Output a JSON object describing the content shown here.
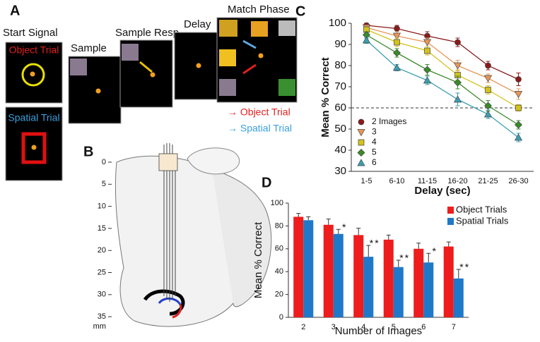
{
  "panels": {
    "a": {
      "label": "A",
      "start_signal": "Start Signal",
      "object_trial": "Object Trial",
      "spatial_trial": "Spatial Trial",
      "sample": "Sample",
      "sample_resp": "Sample Resp",
      "delay": "Delay",
      "match_phase": "Match Phase",
      "legend_object": "→ Object Trial",
      "legend_spatial": "→ Spatial Trial"
    },
    "b": {
      "label": "B",
      "depth_ticks": [
        "0",
        "5",
        "10",
        "15",
        "20",
        "25",
        "30",
        "35"
      ],
      "unit": "mm"
    },
    "c": {
      "label": "C"
    },
    "d": {
      "label": "D"
    }
  },
  "chart_data": [
    {
      "type": "line",
      "xlabel": "Delay (sec)",
      "ylabel": "Mean % Correct",
      "categories": [
        "1-5",
        "6-10",
        "11-15",
        "16-20",
        "21-25",
        "26-30"
      ],
      "ylim": [
        30,
        100
      ],
      "yticks": [
        30,
        40,
        50,
        60,
        70,
        80,
        90,
        100
      ],
      "hline": 60,
      "series": [
        {
          "name": "2 Images",
          "color": "#8b1a1a",
          "marker": "circle",
          "values": [
            99,
            97.5,
            94,
            91,
            80,
            73.5
          ],
          "errors": [
            1,
            1.5,
            2,
            2,
            2,
            3
          ]
        },
        {
          "name": "3",
          "color": "#e8965a",
          "marker": "triangle-down",
          "values": [
            98,
            94,
            91,
            80,
            74,
            66.5
          ],
          "errors": [
            1,
            2,
            2,
            2.5,
            2,
            2.5
          ]
        },
        {
          "name": "4",
          "color": "#d4c21c",
          "marker": "square",
          "values": [
            97,
            91,
            87,
            75.5,
            68.5,
            60
          ],
          "errors": [
            1,
            2,
            2,
            2.5,
            2,
            1.5
          ]
        },
        {
          "name": "5",
          "color": "#3a8a2a",
          "marker": "diamond",
          "values": [
            94.5,
            86,
            78,
            72,
            61,
            52
          ],
          "errors": [
            1.5,
            2,
            2.5,
            3,
            2.5,
            2
          ]
        },
        {
          "name": "6",
          "color": "#3a9fb0",
          "marker": "triangle",
          "values": [
            92,
            79,
            73,
            64,
            57,
            46
          ],
          "errors": [
            1.5,
            1.5,
            2,
            3,
            2,
            2
          ]
        }
      ]
    },
    {
      "type": "bar",
      "xlabel": "Number of Images",
      "ylabel": "Mean % Correct",
      "categories": [
        "2",
        "3",
        "4",
        "5",
        "6",
        "7"
      ],
      "ylim": [
        0,
        100
      ],
      "yticks": [
        0,
        20,
        40,
        60,
        80,
        100
      ],
      "series": [
        {
          "name": "Object Trials",
          "color": "#ee1c1c",
          "values": [
            88,
            81,
            72,
            68,
            60,
            62
          ],
          "errors": [
            3,
            5,
            6,
            4,
            5,
            4
          ]
        },
        {
          "name": "Spatial Trials",
          "color": "#1f78c8",
          "values": [
            85,
            73,
            53,
            44,
            48,
            34
          ],
          "errors": [
            3,
            4,
            10,
            6,
            8,
            8
          ],
          "annotations": [
            null,
            "*",
            "**",
            "**",
            "*",
            "**"
          ]
        }
      ]
    }
  ]
}
